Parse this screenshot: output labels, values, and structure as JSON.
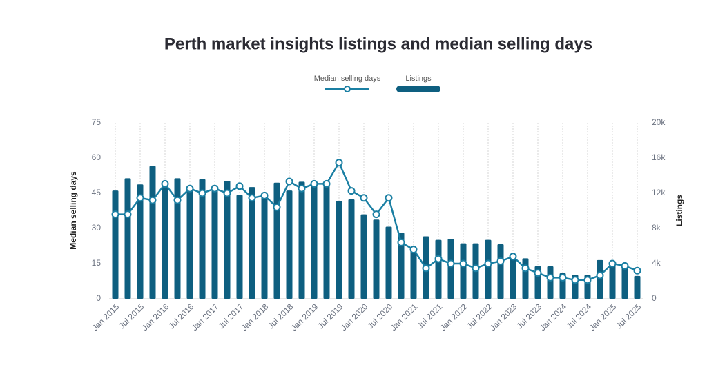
{
  "chart_data": {
    "type": "bar-line",
    "title": "Perth market insights listings and median selling days",
    "y_label": "Median selling days",
    "y2_label": "Listings",
    "categories": [
      "Jan 2015",
      null,
      "Jul 2015",
      null,
      "Jan 2016",
      null,
      "Jul 2016",
      null,
      "Jan 2017",
      null,
      "Jul 2017",
      null,
      "Jan 2018",
      null,
      "Jul 2018",
      null,
      "Jan 2019",
      null,
      "Jul 2019",
      null,
      "Jan 2020",
      null,
      "Jul 2020",
      null,
      "Jan 2021",
      null,
      "Jul 2021",
      null,
      "Jan 2022",
      null,
      "Jul 2022",
      null,
      "Jan 2023",
      null,
      "Jul 2023",
      null,
      "Jan 2024",
      null,
      "Jul 2024",
      null,
      "Jan 2025",
      null,
      "Jul 2025"
    ],
    "series": [
      {
        "name": "Median selling days",
        "type": "line",
        "color": "#1a7fa3",
        "axis": "y",
        "values": [
          36,
          36,
          43,
          42,
          49,
          42,
          47,
          45,
          47,
          45,
          48,
          43,
          44,
          39,
          50,
          47,
          49,
          49,
          58,
          46,
          43,
          36,
          43,
          24,
          21,
          13,
          17,
          15,
          15,
          13,
          15,
          16,
          18,
          13,
          11,
          9,
          9,
          8,
          8,
          10,
          15,
          14,
          12
        ]
      },
      {
        "name": "Listings",
        "type": "bar",
        "color": "#0e5f80",
        "axis": "y2",
        "values": [
          12300,
          13700,
          13000,
          15100,
          13400,
          13700,
          12800,
          13600,
          12900,
          13400,
          11800,
          12700,
          11700,
          13200,
          12300,
          13300,
          13000,
          13300,
          11100,
          11300,
          9600,
          9000,
          8200,
          7500,
          5600,
          7100,
          6700,
          6800,
          6300,
          6300,
          6700,
          6200,
          4900,
          4600,
          3700,
          3700,
          2900,
          2700,
          2700,
          4400,
          4200,
          3900,
          2600
        ]
      }
    ],
    "ylim": [
      0,
      75
    ],
    "yticks": [
      0,
      15,
      30,
      45,
      60,
      75
    ],
    "y2lim": [
      0,
      20000
    ],
    "y2ticks": [
      0,
      {
        "value": 4000,
        "label": "4k"
      },
      {
        "value": 8000,
        "label": "8k"
      },
      {
        "value": 12000,
        "label": "12k"
      },
      {
        "value": 16000,
        "label": "16k"
      },
      {
        "value": 20000,
        "label": "20k"
      }
    ],
    "grid": "x"
  }
}
